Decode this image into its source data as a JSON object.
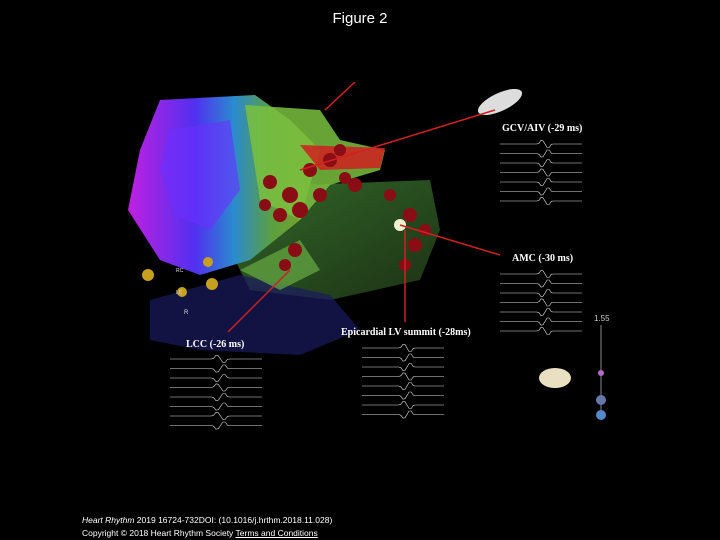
{
  "header": {
    "title": "Figure 2"
  },
  "figure": {
    "labels": {
      "gcv": "GCV/AIV (-29 ms)",
      "amc": "AMC (-30 ms)",
      "summit": "Epicardial LV summit (-28ms)",
      "lcc": "LCC (-26 ms)",
      "scale": "1.55",
      "rc": "RC",
      "lc": "LC",
      "r": "R"
    }
  },
  "footer": {
    "journal": "Heart Rhythm",
    "citation": " 2019 16724-732DOI: (10.1016/j.hrthm.2018.11.028)",
    "copyright": "Copyright © 2018 Heart Rhythm Society",
    "terms": "Terms and Conditions"
  }
}
